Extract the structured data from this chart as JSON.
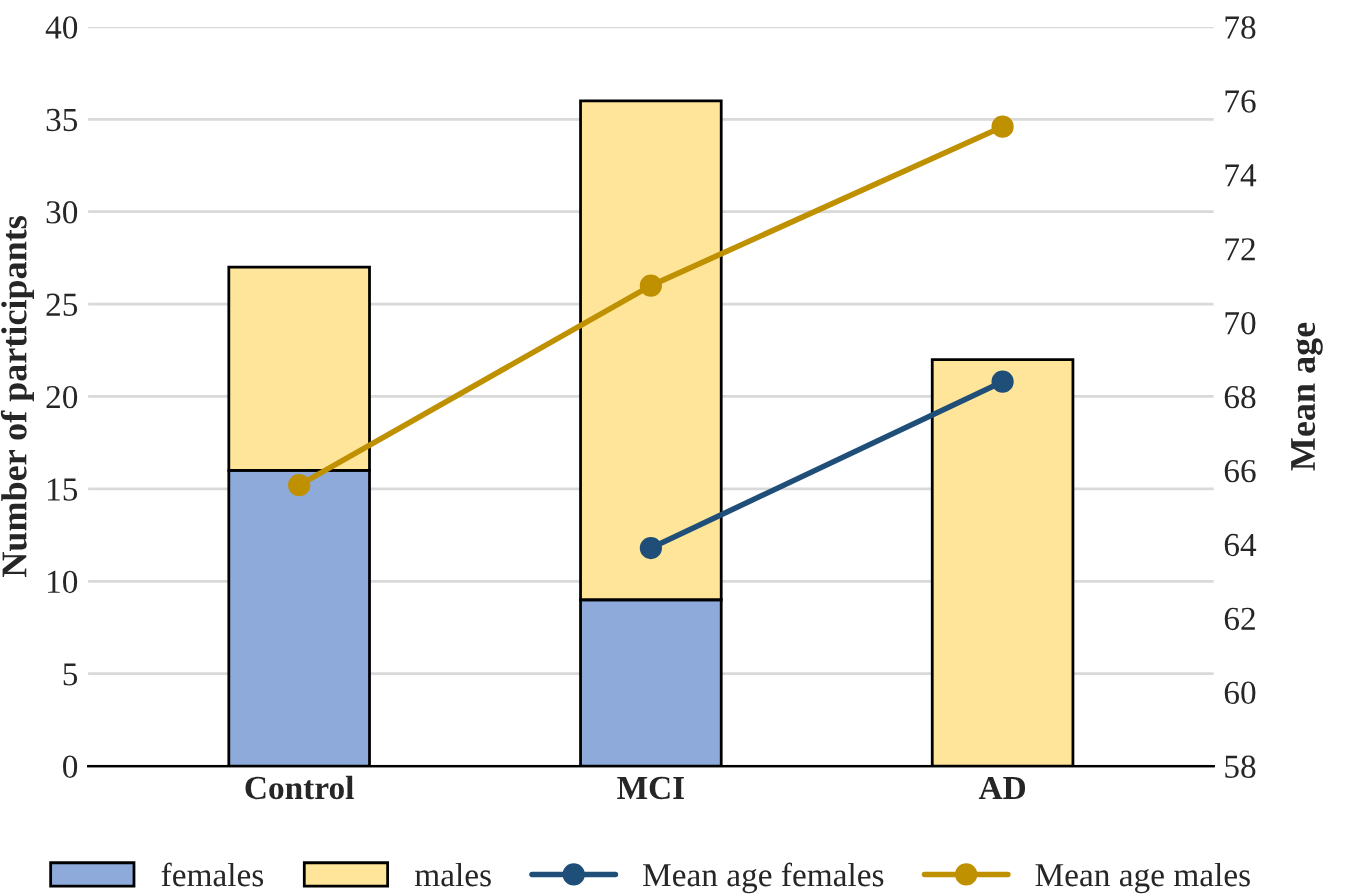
{
  "chart_data": {
    "type": "bar",
    "stacked": true,
    "categories": [
      "Control",
      "MCI",
      "AD"
    ],
    "ylabel": "Number of participants",
    "y2label": "Mean age",
    "ylim": [
      0,
      40
    ],
    "yticks": [
      0,
      5,
      10,
      15,
      20,
      25,
      30,
      35,
      40
    ],
    "y2lim": [
      58,
      78
    ],
    "y2ticks": [
      58,
      60,
      62,
      64,
      66,
      68,
      70,
      72,
      74,
      76,
      78
    ],
    "grid": "y",
    "legend": "bottom",
    "series": [
      {
        "name": "females",
        "color": "#8eaadb",
        "values": [
          16,
          9,
          0
        ]
      },
      {
        "name": "males",
        "color": "#ffe599",
        "values": [
          11,
          27,
          22
        ]
      },
      {
        "name": "Mean age females",
        "type": "line",
        "axis": "y2",
        "color": "#1f4e79",
        "marker": "circle",
        "values": [
          null,
          63.9,
          68.4
        ]
      },
      {
        "name": "Mean age males",
        "type": "line",
        "axis": "y2",
        "color": "#bf9000",
        "marker": "circle",
        "values": [
          65.6,
          71.0,
          75.3
        ]
      }
    ]
  }
}
